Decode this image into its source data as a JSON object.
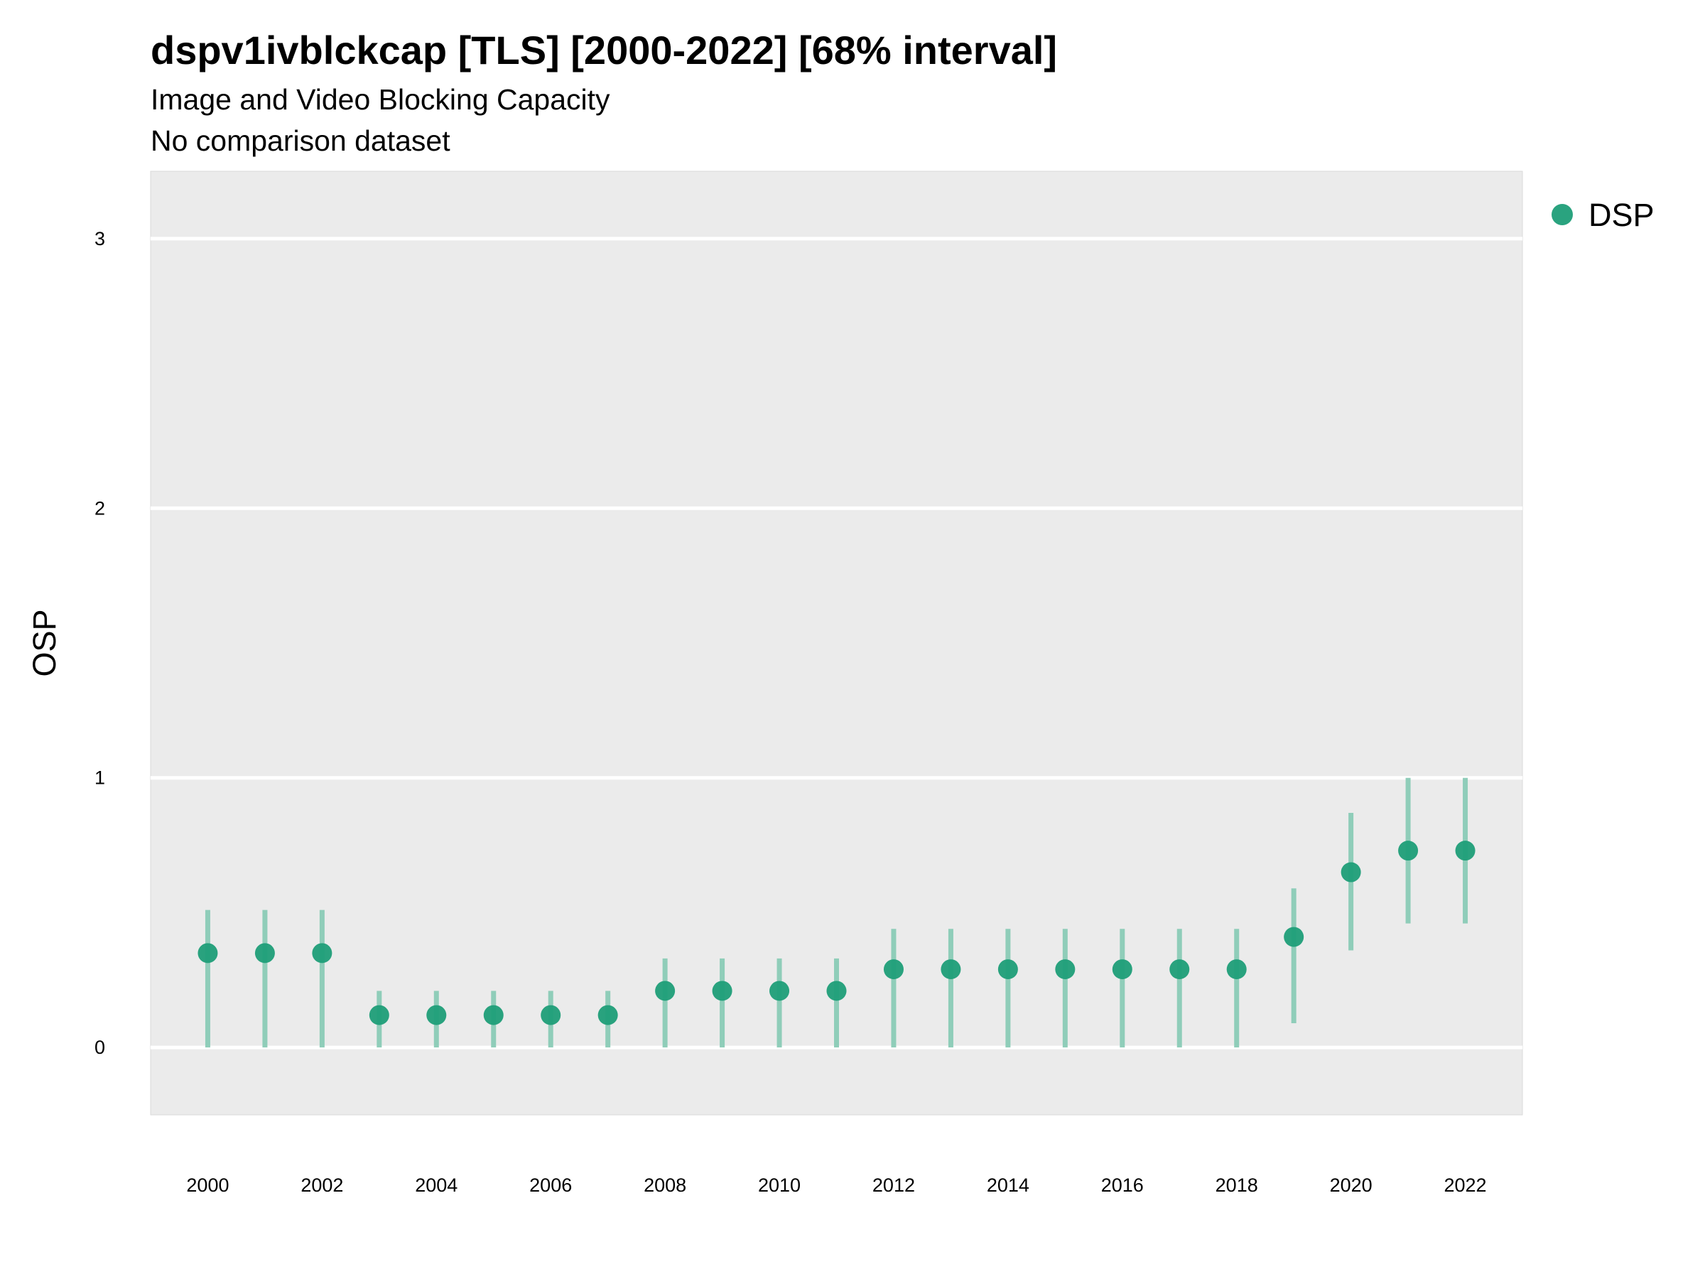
{
  "chart_data": {
    "type": "scatter",
    "title": "dspv1ivblckcap [TLS] [2000-2022] [68% interval]",
    "subtitle": "Image and Video Blocking Capacity",
    "subtitle2": "No comparison dataset",
    "xlabel": "",
    "ylabel": "OSP",
    "xlim": [
      1999,
      2023
    ],
    "ylim": [
      -0.25,
      3.25
    ],
    "x_ticks": [
      2000,
      2002,
      2004,
      2006,
      2008,
      2010,
      2012,
      2014,
      2016,
      2018,
      2020,
      2022
    ],
    "y_ticks": [
      0,
      1,
      2,
      3
    ],
    "grid": true,
    "legend_position": "top-right",
    "colors": {
      "point": "#1f9e78",
      "interval": "#8fcdb9",
      "panel": "#ebebeb",
      "gridline": "#ffffff"
    },
    "series": [
      {
        "name": "DSP",
        "x": [
          2000,
          2001,
          2002,
          2003,
          2004,
          2005,
          2006,
          2007,
          2008,
          2009,
          2010,
          2011,
          2012,
          2013,
          2014,
          2015,
          2016,
          2017,
          2018,
          2019,
          2020,
          2021,
          2022
        ],
        "y": [
          0.35,
          0.35,
          0.35,
          0.12,
          0.12,
          0.12,
          0.12,
          0.12,
          0.21,
          0.21,
          0.21,
          0.21,
          0.29,
          0.29,
          0.29,
          0.29,
          0.29,
          0.29,
          0.29,
          0.41,
          0.65,
          0.73,
          0.73
        ],
        "lower": [
          0,
          0,
          0,
          0,
          0,
          0,
          0,
          0,
          0,
          0,
          0,
          0,
          0,
          0,
          0,
          0,
          0,
          0,
          0,
          0.09,
          0.36,
          0.46,
          0.46
        ],
        "upper": [
          0.51,
          0.51,
          0.51,
          0.21,
          0.21,
          0.21,
          0.21,
          0.21,
          0.33,
          0.33,
          0.33,
          0.33,
          0.44,
          0.44,
          0.44,
          0.44,
          0.44,
          0.44,
          0.44,
          0.59,
          0.87,
          1.0,
          1.0
        ]
      }
    ]
  }
}
